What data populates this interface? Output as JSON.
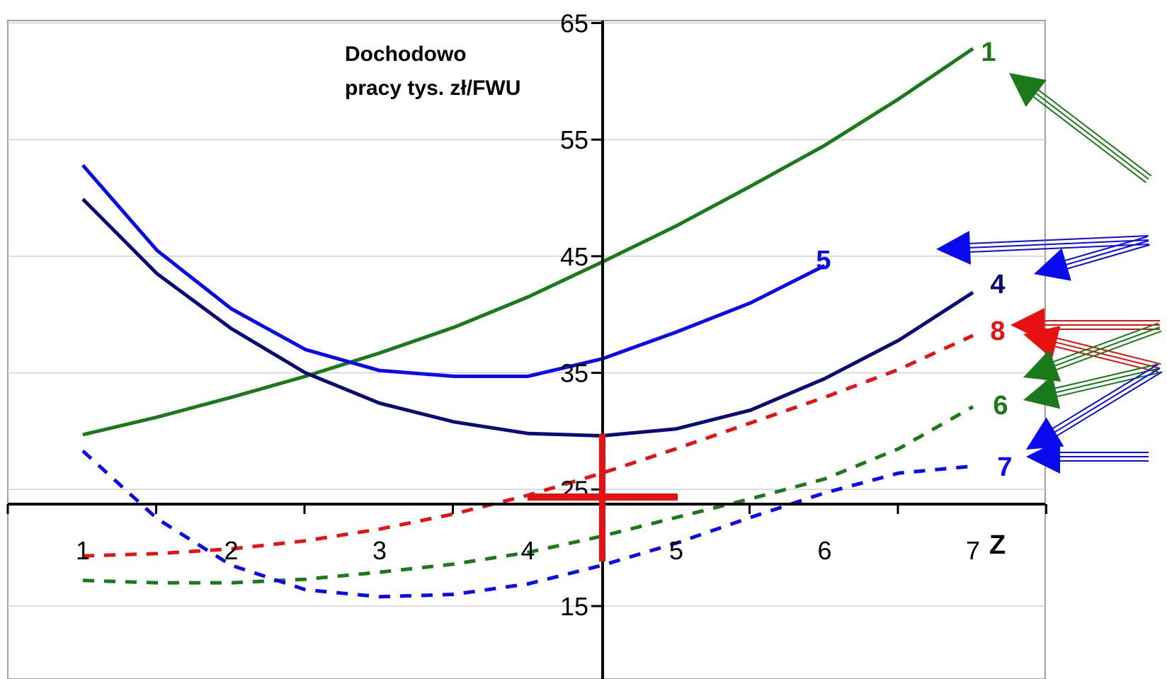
{
  "chart_data": {
    "type": "line",
    "title_lines": [
      "Dochodowo",
      "pracy tys. zł/FWU"
    ],
    "xlabel": "Z",
    "ylabel": "",
    "x_ticks": [
      "1",
      "2",
      "3",
      "4",
      "5",
      "6",
      "7"
    ],
    "y_ticks": [
      "15",
      "25",
      "35",
      "45",
      "55",
      "65"
    ],
    "xlim": [
      0.0,
      7.5
    ],
    "ylim": [
      8.5,
      66.5
    ],
    "grid": true,
    "series": [
      {
        "name": "1",
        "color": "#1a7a1a",
        "dash": "solid",
        "x": [
          1,
          1.5,
          2,
          2.5,
          3,
          3.5,
          4,
          4.5,
          5,
          5.5,
          6,
          6.5,
          7
        ],
        "y": [
          29.7,
          31.2,
          32.9,
          34.7,
          36.7,
          38.9,
          41.5,
          44.5,
          47.6,
          51.0,
          54.5,
          58.5,
          62.8
        ]
      },
      {
        "name": "5",
        "color": "#0a0af0",
        "dash": "solid",
        "x": [
          1,
          1.5,
          2,
          2.5,
          3,
          3.5,
          4,
          4.5,
          5,
          5.5,
          6
        ],
        "y": [
          52.8,
          45.5,
          40.5,
          37.0,
          35.2,
          34.7,
          34.7,
          36.2,
          38.5,
          41.0,
          44.2
        ]
      },
      {
        "name": "4",
        "color": "#0a0a78",
        "dash": "solid",
        "x": [
          1,
          1.5,
          2,
          2.5,
          3,
          3.5,
          4,
          4.5,
          5,
          5.5,
          6,
          6.5,
          7
        ],
        "y": [
          49.9,
          43.5,
          38.8,
          35.0,
          32.4,
          30.8,
          29.8,
          29.6,
          30.2,
          31.8,
          34.5,
          37.8,
          41.9
        ]
      },
      {
        "name": "8",
        "color": "#e81010",
        "dash": "dashed",
        "x": [
          1,
          1.5,
          2,
          2.5,
          3,
          3.5,
          4,
          4.5,
          5,
          5.5,
          6,
          6.5,
          7
        ],
        "y": [
          19.3,
          19.5,
          19.9,
          20.6,
          21.6,
          22.9,
          24.5,
          26.4,
          28.5,
          30.7,
          32.9,
          35.3,
          38.2
        ]
      },
      {
        "name": "6",
        "color": "#1a7a1a",
        "dash": "dashed",
        "x": [
          1,
          1.5,
          2,
          2.5,
          3,
          3.5,
          4,
          4.5,
          5,
          5.5,
          6,
          6.5,
          7
        ],
        "y": [
          17.2,
          17.0,
          17.0,
          17.3,
          17.9,
          18.6,
          19.6,
          21.0,
          22.6,
          24.2,
          25.9,
          28.5,
          32.1
        ]
      },
      {
        "name": "7",
        "color": "#0a0af0",
        "dash": "dashed",
        "x": [
          1,
          1.5,
          2,
          2.5,
          3,
          3.5,
          4,
          4.5,
          5,
          5.5,
          6,
          6.5,
          7
        ],
        "y": [
          28.3,
          22.5,
          18.5,
          16.4,
          15.8,
          16.0,
          16.9,
          18.5,
          20.4,
          22.6,
          24.7,
          26.4,
          27.0
        ]
      }
    ]
  }
}
